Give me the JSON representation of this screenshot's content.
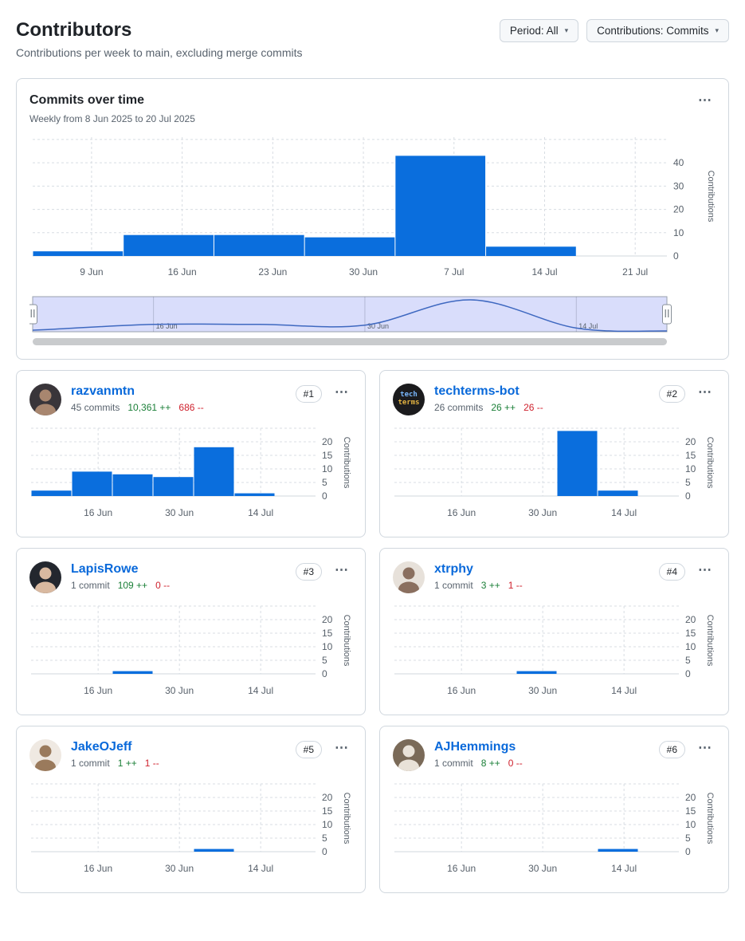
{
  "page": {
    "title": "Contributors",
    "subtitle": "Contributions per week to main, excluding merge commits"
  },
  "toolbar": {
    "period_button": "Period: All",
    "contributions_button": "Contributions: Commits"
  },
  "icons": {
    "kebab": "⋯",
    "caret_down": "▾",
    "brush_handle": "∥"
  },
  "colors": {
    "bar": "#0a6edd",
    "link": "#0969da",
    "additions": "#1a7f37",
    "deletions": "#cf222e",
    "border": "#d0d7de",
    "grid": "#d8dde3",
    "axis": "#d0d7de",
    "tick_text": "#57606a",
    "button_bg": "#f6f8fa",
    "brush_fill": "#d9ddfb",
    "brush_border": "#99a1ac",
    "brush_line": "#3e68c0",
    "scrollbar": "#c9cbcd"
  },
  "main_chart_card": {
    "title": "Commits over time",
    "subtitle": "Weekly from 8 Jun 2025 to 20 Jul 2025"
  },
  "cards": [
    {
      "name": "razvanmtn",
      "rank": "#1",
      "commits": "45 commits",
      "additions": "10,361 ++",
      "deletions": "686 --",
      "avatar": {
        "bg": "#39353a",
        "face": "#a8866f"
      }
    },
    {
      "name": "techterms-bot",
      "rank": "#2",
      "commits": "26 commits",
      "additions": "26 ++",
      "deletions": "26 --",
      "avatar": {
        "bg": "#1b1b1d",
        "lines": [
          {
            "text": "tech",
            "color": "#79b8ff"
          },
          {
            "text": "terms",
            "color": "#e3b341"
          }
        ]
      }
    },
    {
      "name": "LapisRowe",
      "rank": "#3",
      "commits": "1 commit",
      "additions": "109 ++",
      "deletions": "0 --",
      "avatar": {
        "bg": "#23272e",
        "face": "#d9b9a0"
      }
    },
    {
      "name": "xtrphy",
      "rank": "#4",
      "commits": "1 commit",
      "additions": "3 ++",
      "deletions": "1 --",
      "avatar": {
        "bg": "#e7e1da",
        "face": "#8a6f5f"
      }
    },
    {
      "name": "JakeOJeff",
      "rank": "#5",
      "commits": "1 commit",
      "additions": "1 ++",
      "deletions": "1 --",
      "avatar": {
        "bg": "#efe9e2",
        "face": "#9a7a5c"
      }
    },
    {
      "name": "AJHemmings",
      "rank": "#6",
      "commits": "1 commit",
      "additions": "8 ++",
      "deletions": "0 --",
      "avatar": {
        "bg": "#7a6a58",
        "face": "#e9e2d8"
      }
    }
  ],
  "chart_data": [
    {
      "type": "bar",
      "title": "Commits over time",
      "subtitle": "Weekly from 8 Jun 2025 to 20 Jul 2025",
      "categories": [
        "9 Jun",
        "16 Jun",
        "23 Jun",
        "30 Jun",
        "7 Jul",
        "14 Jul",
        "21 Jul"
      ],
      "values": [
        2,
        9,
        9,
        8,
        43,
        4,
        0
      ],
      "ylabel": "Contributions",
      "yticks": [
        0,
        10,
        20,
        30,
        40
      ],
      "ylim": [
        0,
        51
      ],
      "grid": true,
      "brush": {
        "type": "area",
        "ticks": [
          "16 Jun",
          "30 Jun",
          "14 Jul"
        ],
        "tick_days": [
          8,
          22,
          36
        ],
        "total_days": 42,
        "curve_days": [
          0,
          1,
          8,
          15,
          22,
          29,
          36,
          42
        ],
        "curve_values": [
          1,
          2,
          9,
          9,
          8,
          43,
          4,
          0
        ]
      }
    },
    {
      "type": "bar",
      "contributor": "razvanmtn",
      "categories": [
        "9 Jun",
        "16 Jun",
        "23 Jun",
        "30 Jun",
        "7 Jul",
        "14 Jul",
        "21 Jul"
      ],
      "values": [
        2,
        9,
        8,
        7,
        18,
        1,
        0
      ],
      "ylabel": "Contributions",
      "yticks": [
        0,
        5,
        10,
        15,
        20
      ],
      "ylim": [
        0,
        25
      ],
      "grid": true,
      "xticks_shown": [
        "16 Jun",
        "30 Jun",
        "14 Jul"
      ]
    },
    {
      "type": "bar",
      "contributor": "techterms-bot",
      "categories": [
        "9 Jun",
        "16 Jun",
        "23 Jun",
        "30 Jun",
        "7 Jul",
        "14 Jul",
        "21 Jul"
      ],
      "values": [
        0,
        0,
        0,
        0,
        24,
        2,
        0
      ],
      "ylabel": "Contributions",
      "yticks": [
        0,
        5,
        10,
        15,
        20
      ],
      "ylim": [
        0,
        25
      ],
      "grid": true,
      "xticks_shown": [
        "16 Jun",
        "30 Jun",
        "14 Jul"
      ]
    },
    {
      "type": "bar",
      "contributor": "LapisRowe",
      "categories": [
        "9 Jun",
        "16 Jun",
        "23 Jun",
        "30 Jun",
        "7 Jul",
        "14 Jul",
        "21 Jul"
      ],
      "values": [
        0,
        0,
        1,
        0,
        0,
        0,
        0
      ],
      "ylabel": "Contributions",
      "yticks": [
        0,
        5,
        10,
        15,
        20
      ],
      "ylim": [
        0,
        25
      ],
      "grid": true,
      "xticks_shown": [
        "16 Jun",
        "30 Jun",
        "14 Jul"
      ]
    },
    {
      "type": "bar",
      "contributor": "xtrphy",
      "categories": [
        "9 Jun",
        "16 Jun",
        "23 Jun",
        "30 Jun",
        "7 Jul",
        "14 Jul",
        "21 Jul"
      ],
      "values": [
        0,
        0,
        0,
        1,
        0,
        0,
        0
      ],
      "ylabel": "Contributions",
      "yticks": [
        0,
        5,
        10,
        15,
        20
      ],
      "ylim": [
        0,
        25
      ],
      "grid": true,
      "xticks_shown": [
        "16 Jun",
        "30 Jun",
        "14 Jul"
      ]
    },
    {
      "type": "bar",
      "contributor": "JakeOJeff",
      "categories": [
        "9 Jun",
        "16 Jun",
        "23 Jun",
        "30 Jun",
        "7 Jul",
        "14 Jul",
        "21 Jul"
      ],
      "values": [
        0,
        0,
        0,
        0,
        1,
        0,
        0
      ],
      "ylabel": "Contributions",
      "yticks": [
        0,
        5,
        10,
        15,
        20
      ],
      "ylim": [
        0,
        25
      ],
      "grid": true,
      "xticks_shown": [
        "16 Jun",
        "30 Jun",
        "14 Jul"
      ]
    },
    {
      "type": "bar",
      "contributor": "AJHemmings",
      "categories": [
        "9 Jun",
        "16 Jun",
        "23 Jun",
        "30 Jun",
        "7 Jul",
        "14 Jul",
        "21 Jul"
      ],
      "values": [
        0,
        0,
        0,
        0,
        0,
        1,
        0
      ],
      "ylabel": "Contributions",
      "yticks": [
        0,
        5,
        10,
        15,
        20
      ],
      "ylim": [
        0,
        25
      ],
      "grid": true,
      "xticks_shown": [
        "16 Jun",
        "30 Jun",
        "14 Jul"
      ]
    }
  ]
}
